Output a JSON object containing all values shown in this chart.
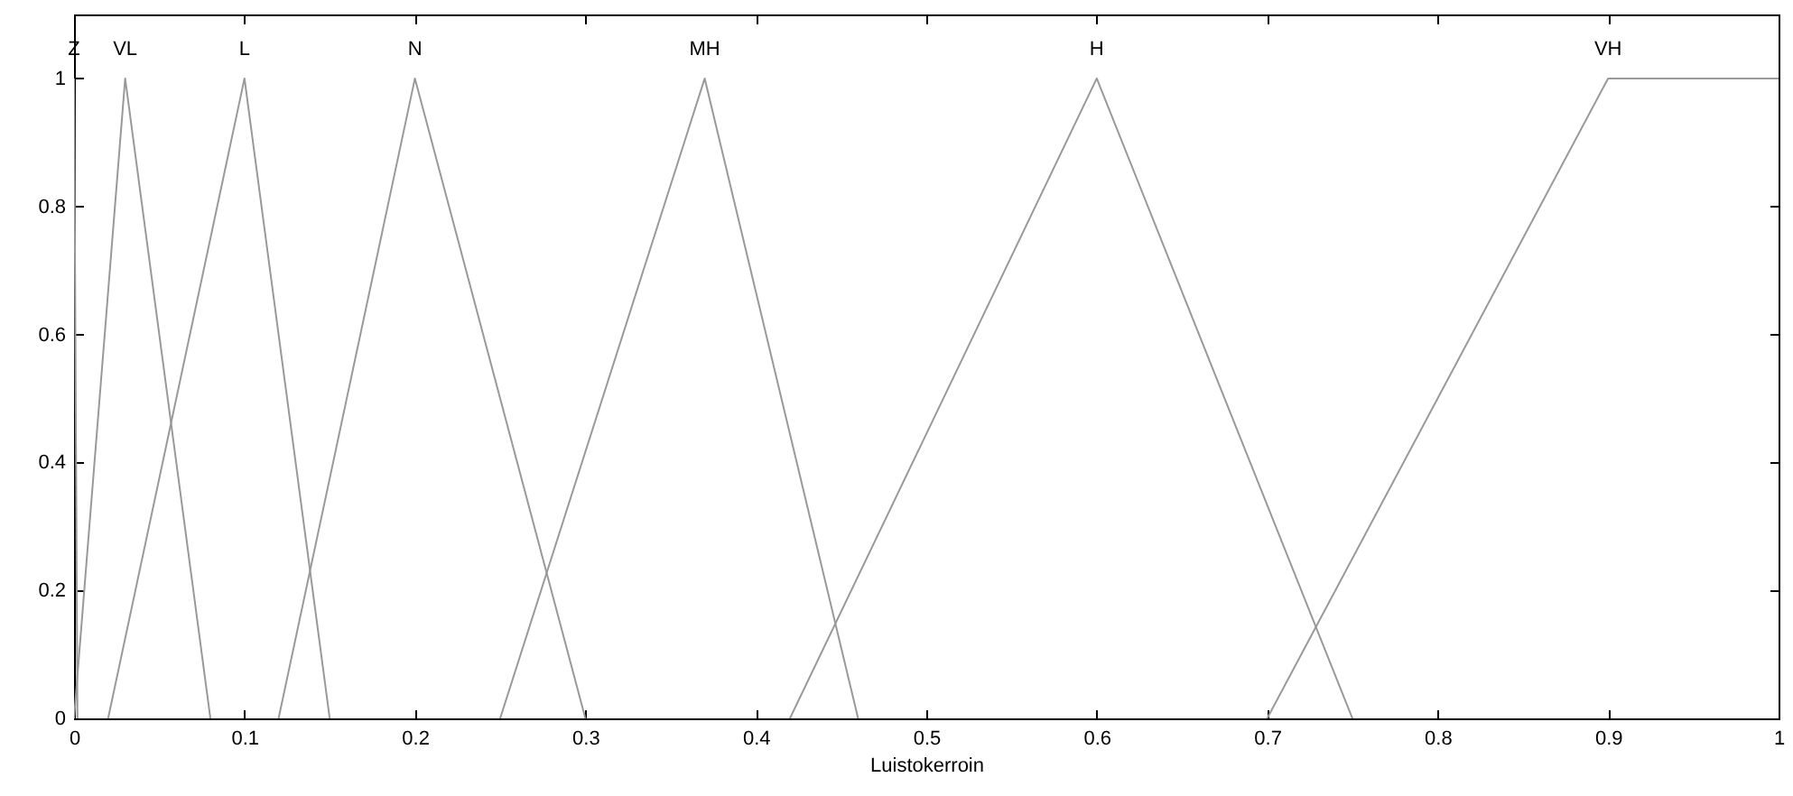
{
  "chart_data": {
    "type": "line",
    "xlabel": "Luistokerroin",
    "xlim": [
      0,
      1
    ],
    "xticks": [
      0,
      0.1,
      0.2,
      0.3,
      0.4,
      0.5,
      0.6,
      0.7,
      0.8,
      0.9,
      1
    ],
    "ylim": [
      0,
      1.1
    ],
    "yticks": [
      0,
      0.2,
      0.4,
      0.6,
      0.8,
      1
    ],
    "grid": false,
    "marker": "none",
    "line_style": "solid",
    "series": [
      {
        "name": "Z",
        "color": "#999999",
        "x": [
          0,
          0.002
        ],
        "values": [
          1,
          0
        ]
      },
      {
        "name": "VL",
        "color": "#999999",
        "x": [
          0,
          0.03,
          0.08
        ],
        "values": [
          0,
          1,
          0
        ]
      },
      {
        "name": "L",
        "color": "#999999",
        "x": [
          0.02,
          0.1,
          0.15
        ],
        "values": [
          0,
          1,
          0
        ]
      },
      {
        "name": "N",
        "color": "#999999",
        "x": [
          0.12,
          0.2,
          0.3
        ],
        "values": [
          0,
          1,
          0
        ]
      },
      {
        "name": "MH",
        "color": "#999999",
        "x": [
          0.25,
          0.37,
          0.46
        ],
        "values": [
          0,
          1,
          0
        ]
      },
      {
        "name": "H",
        "color": "#999999",
        "x": [
          0.42,
          0.6,
          0.75
        ],
        "values": [
          0,
          1,
          0
        ]
      },
      {
        "name": "VH",
        "color": "#999999",
        "x": [
          0.7,
          0.9,
          1
        ],
        "values": [
          0,
          1,
          1
        ]
      }
    ]
  }
}
